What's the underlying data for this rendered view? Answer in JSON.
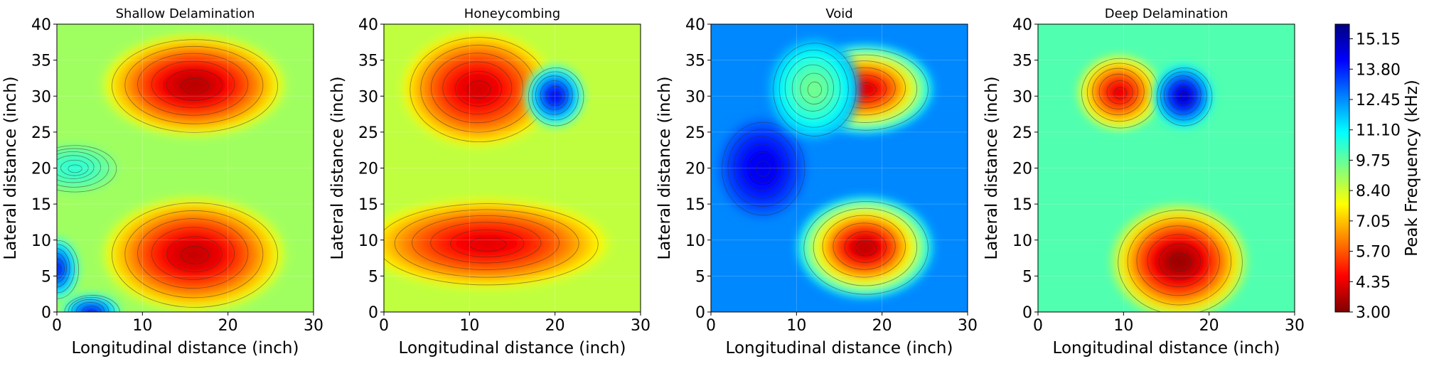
{
  "chart_data": [
    {
      "type": "heatmap",
      "title": "Shallow Delamination",
      "xlabel": "Longitudinal distance (inch)",
      "ylabel": "Lateral distance (inch)",
      "xlim": [
        0,
        30
      ],
      "ylim": [
        0,
        40
      ],
      "xticks": [
        0,
        10,
        20,
        30
      ],
      "yticks": [
        0,
        5,
        10,
        15,
        20,
        25,
        30,
        35,
        40
      ],
      "background_value": 9.0,
      "features": [
        {
          "x": 16,
          "y": 31.5,
          "peak_value": 3.6,
          "spread_x": 6.0,
          "spread_y": 4.0
        },
        {
          "x": 16,
          "y": 8.0,
          "peak_value": 3.8,
          "spread_x": 6.0,
          "spread_y": 4.5
        },
        {
          "x": 0,
          "y": 6.0,
          "peak_value": 14.0,
          "spread_x": 1.5,
          "spread_y": 2.5
        },
        {
          "x": 4,
          "y": 0,
          "peak_value": 14.0,
          "spread_x": 2.0,
          "spread_y": 1.5
        },
        {
          "x": 2,
          "y": 20.0,
          "peak_value": 10.5,
          "spread_x": 3.0,
          "spread_y": 2.0
        }
      ]
    },
    {
      "type": "heatmap",
      "title": "Honeycombing",
      "xlabel": "Longitudinal distance (inch)",
      "ylabel": "Lateral distance (inch)",
      "xlim": [
        0,
        30
      ],
      "ylim": [
        0,
        40
      ],
      "xticks": [
        0,
        10,
        20,
        30
      ],
      "yticks": [
        0,
        5,
        10,
        15,
        20,
        25,
        30,
        35,
        40
      ],
      "background_value": 8.6,
      "features": [
        {
          "x": 11,
          "y": 31.0,
          "peak_value": 4.0,
          "spread_x": 5.0,
          "spread_y": 4.5
        },
        {
          "x": 12,
          "y": 9.5,
          "peak_value": 4.2,
          "spread_x": 8.0,
          "spread_y": 3.5
        },
        {
          "x": 20,
          "y": 30.0,
          "peak_value": 14.5,
          "spread_x": 2.0,
          "spread_y": 2.5
        }
      ]
    },
    {
      "type": "heatmap",
      "title": "Void",
      "xlabel": "Longitudinal distance (inch)",
      "ylabel": "Lateral distance (inch)",
      "xlim": [
        0,
        30
      ],
      "ylim": [
        0,
        40
      ],
      "xticks": [
        0,
        10,
        20,
        30
      ],
      "yticks": [
        0,
        5,
        10,
        15,
        20,
        25,
        30,
        35,
        40
      ],
      "background_value": 12.5,
      "features": [
        {
          "x": 18,
          "y": 31.0,
          "peak_value": 4.0,
          "spread_x": 4.5,
          "spread_y": 3.5
        },
        {
          "x": 18,
          "y": 9.0,
          "peak_value": 3.6,
          "spread_x": 4.5,
          "spread_y": 4.0
        },
        {
          "x": 6,
          "y": 20.0,
          "peak_value": 14.5,
          "spread_x": 3.0,
          "spread_y": 4.0
        },
        {
          "x": 12,
          "y": 31.0,
          "peak_value": 9.5,
          "spread_x": 3.0,
          "spread_y": 4.0
        }
      ]
    },
    {
      "type": "heatmap",
      "title": "Deep Delamination",
      "xlabel": "Longitudinal distance (inch)",
      "ylabel": "Lateral distance (inch)",
      "xlim": [
        0,
        30
      ],
      "ylim": [
        0,
        40
      ],
      "xticks": [
        0,
        10,
        20,
        30
      ],
      "yticks": [
        0,
        5,
        10,
        15,
        20,
        25,
        30,
        35,
        40
      ],
      "background_value": 10.0,
      "features": [
        {
          "x": 9.5,
          "y": 30.5,
          "peak_value": 4.2,
          "spread_x": 2.8,
          "spread_y": 3.0
        },
        {
          "x": 16.5,
          "y": 7.0,
          "peak_value": 3.2,
          "spread_x": 4.5,
          "spread_y": 4.5
        },
        {
          "x": 17,
          "y": 30.0,
          "peak_value": 15.0,
          "spread_x": 2.0,
          "spread_y": 2.5
        }
      ]
    }
  ],
  "colorbar": {
    "label": "Peak Frequency (kHz)",
    "min": 3.0,
    "max": 15.8,
    "ticks": [
      "15.15",
      "13.80",
      "12.45",
      "11.10",
      "9.75",
      "8.40",
      "7.05",
      "5.70",
      "4.35",
      "3.00"
    ],
    "colors": [
      "#800000",
      "#ff0000",
      "#ff8000",
      "#ffff00",
      "#80ff80",
      "#00ffff",
      "#0080ff",
      "#0000ff",
      "#000080"
    ]
  }
}
